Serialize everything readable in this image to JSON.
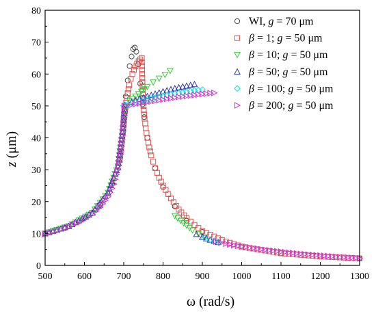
{
  "chart_data": {
    "type": "scatter",
    "xlabel": "ω (rad/s)",
    "ylabel_var": "z",
    "ylabel_unit": " (μm)",
    "xlim": [
      500,
      1300
    ],
    "ylim": [
      0,
      80
    ],
    "xticks": [
      500,
      600,
      700,
      800,
      900,
      1000,
      1100,
      1200,
      1300
    ],
    "yticks": [
      0,
      10,
      20,
      30,
      40,
      50,
      60,
      70,
      80
    ],
    "grid": false,
    "legend_position": "top-right",
    "series": [
      {
        "legend": {
          "pre": "",
          "mid": "WI, ",
          "g": "g",
          "post": " = 70 μm"
        },
        "marker": "circle",
        "color": "#444444",
        "points": [
          [
            500,
            10.0
          ],
          [
            550,
            11.7
          ],
          [
            600,
            14.8
          ],
          [
            640,
            18.9
          ],
          [
            670,
            25.5
          ],
          [
            690,
            35.0
          ],
          [
            700,
            46.0
          ],
          [
            705,
            53.0
          ],
          [
            710,
            58.0
          ],
          [
            715,
            62.5
          ],
          [
            720,
            65.5
          ],
          [
            724,
            67.8
          ],
          [
            728,
            68.3
          ],
          [
            732,
            67.0
          ],
          [
            737,
            63.0
          ],
          [
            742,
            57.0
          ],
          [
            748,
            50.5
          ],
          [
            752,
            46.5
          ],
          [
            760,
            40.0
          ],
          [
            780,
            30.5
          ],
          [
            800,
            24.5
          ],
          [
            830,
            18.5
          ],
          [
            860,
            14.0
          ],
          [
            900,
            10.5
          ],
          [
            1000,
            5.9
          ],
          [
            1100,
            3.8
          ],
          [
            1200,
            2.8
          ],
          [
            1300,
            2.2
          ]
        ]
      },
      {
        "legend": {
          "pre": "β",
          "mid": " = 1; ",
          "g": "g",
          "post": " = 50 μm"
        },
        "marker": "square",
        "color": "#d9534f",
        "points": [
          [
            690,
            33.0
          ],
          [
            698,
            42.0
          ],
          [
            702,
            47.0
          ],
          [
            706,
            51.0
          ],
          [
            710,
            54.0
          ],
          [
            714,
            56.5
          ],
          [
            718,
            58.5
          ],
          [
            722,
            60.0
          ],
          [
            726,
            61.3
          ],
          [
            730,
            62.4
          ],
          [
            734,
            63.3
          ],
          [
            738,
            64.0
          ],
          [
            742,
            64.6
          ],
          [
            746,
            65.0
          ],
          [
            747,
            60.0
          ],
          [
            748,
            55.0
          ],
          [
            750,
            50.0
          ],
          [
            753,
            46.0
          ],
          [
            756,
            43.0
          ],
          [
            760,
            40.0
          ],
          [
            765,
            37.0
          ],
          [
            770,
            34.5
          ],
          [
            775,
            32.5
          ],
          [
            780,
            30.5
          ],
          [
            790,
            27.5
          ],
          [
            800,
            25.0
          ],
          [
            820,
            21.0
          ],
          [
            840,
            17.5
          ],
          [
            860,
            14.8
          ],
          [
            880,
            12.7
          ],
          [
            900,
            10.8
          ],
          [
            950,
            7.9
          ],
          [
            1000,
            5.9
          ],
          [
            1100,
            3.8
          ],
          [
            1200,
            2.8
          ],
          [
            1300,
            2.2
          ]
        ]
      },
      {
        "legend": {
          "pre": "β",
          "mid": " = 10;  ",
          "g": "g",
          "post": " = 50 μm"
        },
        "marker": "triangle-down",
        "color": "#33cc33",
        "points": [
          [
            500,
            10.0
          ],
          [
            560,
            12.3
          ],
          [
            620,
            16.5
          ],
          [
            660,
            22.8
          ],
          [
            685,
            31.0
          ],
          [
            698,
            43.0
          ],
          [
            703,
            50.0
          ],
          [
            715,
            51.5
          ],
          [
            730,
            53.0
          ],
          [
            745,
            54.5
          ],
          [
            760,
            56.0
          ],
          [
            775,
            57.4
          ],
          [
            790,
            58.6
          ],
          [
            805,
            59.8
          ],
          [
            818,
            61.0
          ],
          [
            830,
            15.5
          ],
          [
            845,
            14.0
          ],
          [
            860,
            12.5
          ],
          [
            875,
            11.0
          ],
          [
            890,
            9.8
          ],
          [
            905,
            8.8
          ]
        ]
      },
      {
        "legend": {
          "pre": "β",
          "mid": " = 50;  ",
          "g": "g",
          "post": " = 50 μm"
        },
        "marker": "triangle-up",
        "color": "#3333aa",
        "points": [
          [
            500,
            10.0
          ],
          [
            560,
            12.3
          ],
          [
            620,
            16.5
          ],
          [
            660,
            22.8
          ],
          [
            685,
            31.0
          ],
          [
            698,
            43.0
          ],
          [
            703,
            50.3
          ],
          [
            720,
            51.3
          ],
          [
            740,
            52.2
          ],
          [
            760,
            53.0
          ],
          [
            780,
            53.8
          ],
          [
            800,
            54.5
          ],
          [
            820,
            55.2
          ],
          [
            840,
            55.8
          ],
          [
            860,
            56.3
          ],
          [
            880,
            56.8
          ],
          [
            885,
            9.8
          ],
          [
            900,
            8.9
          ],
          [
            920,
            8.0
          ],
          [
            940,
            7.3
          ]
        ]
      },
      {
        "legend": {
          "pre": "β",
          "mid": " = 100;  ",
          "g": "g",
          "post": " = 50 μm"
        },
        "marker": "diamond",
        "color": "#00e0e0",
        "points": [
          [
            700,
            50.1
          ],
          [
            720,
            50.8
          ],
          [
            740,
            51.4
          ],
          [
            760,
            52.0
          ],
          [
            780,
            52.6
          ],
          [
            800,
            53.1
          ],
          [
            820,
            53.6
          ],
          [
            840,
            54.0
          ],
          [
            860,
            54.4
          ],
          [
            880,
            54.8
          ],
          [
            900,
            55.1
          ],
          [
            905,
            8.6
          ],
          [
            920,
            8.0
          ],
          [
            940,
            7.3
          ]
        ]
      },
      {
        "legend": {
          "pre": "β",
          "mid": " = 200;  ",
          "g": "g",
          "post": " = 50 μm"
        },
        "marker": "triangle-right",
        "color": "#cc33cc",
        "points": [
          [
            500,
            9.8
          ],
          [
            530,
            10.8
          ],
          [
            560,
            12.1
          ],
          [
            590,
            13.7
          ],
          [
            620,
            16.0
          ],
          [
            640,
            18.2
          ],
          [
            660,
            21.5
          ],
          [
            675,
            25.5
          ],
          [
            685,
            30.0
          ],
          [
            693,
            36.0
          ],
          [
            698,
            42.0
          ],
          [
            702,
            50.0
          ],
          [
            720,
            50.4
          ],
          [
            740,
            50.8
          ],
          [
            760,
            51.2
          ],
          [
            780,
            51.6
          ],
          [
            800,
            52.0
          ],
          [
            820,
            52.4
          ],
          [
            840,
            52.8
          ],
          [
            860,
            53.1
          ],
          [
            880,
            53.4
          ],
          [
            900,
            53.7
          ],
          [
            920,
            54.0
          ],
          [
            930,
            54.1
          ],
          [
            935,
            7.5
          ],
          [
            960,
            6.8
          ],
          [
            1000,
            5.9
          ],
          [
            1050,
            5.0
          ],
          [
            1100,
            4.3
          ],
          [
            1150,
            3.6
          ],
          [
            1200,
            3.1
          ],
          [
            1250,
            2.6
          ],
          [
            1300,
            2.2
          ]
        ]
      }
    ]
  }
}
